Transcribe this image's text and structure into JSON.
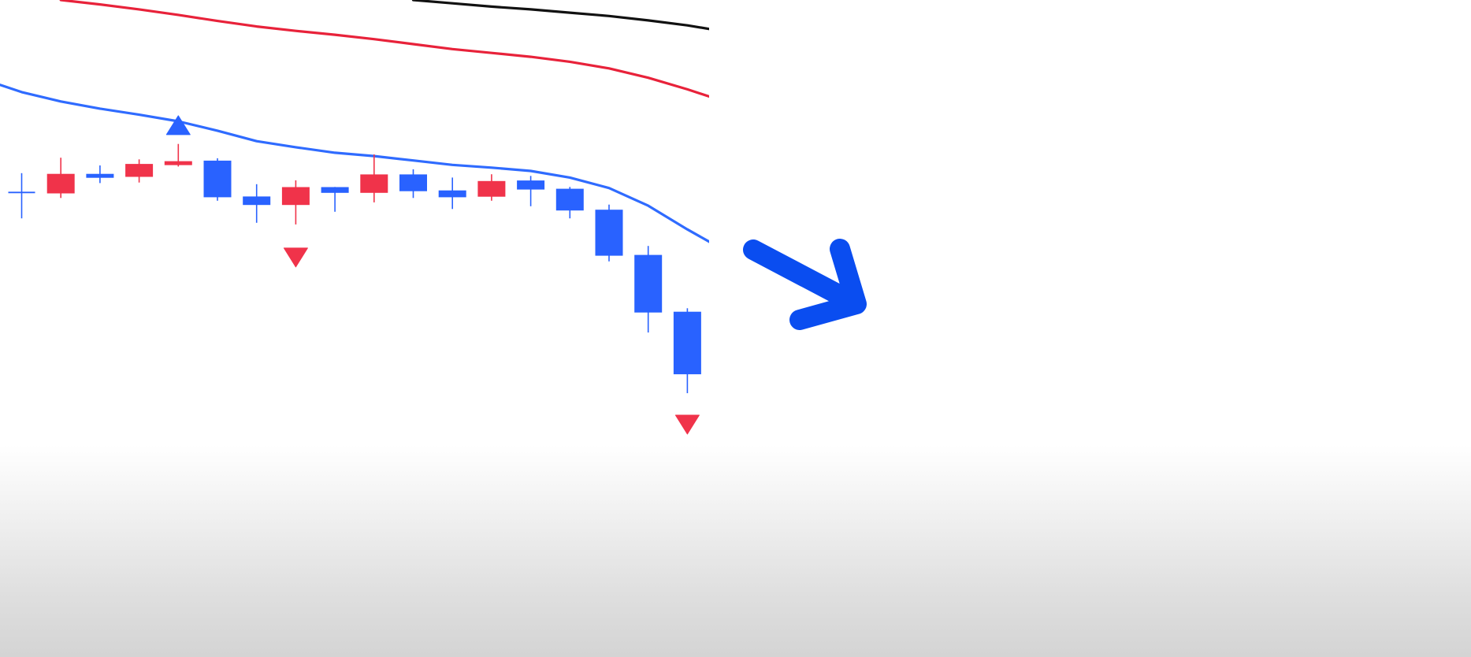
{
  "chart_data": {
    "type": "candlestick",
    "title": "",
    "xlabel": "",
    "ylabel": "",
    "ylim": [
      0,
      100
    ],
    "grid": false,
    "legend": "none",
    "colors": {
      "up": "#f0334a",
      "down": "#2962ff",
      "ma_slow": "#111111",
      "ma_mid": "#e8223a",
      "ma_fast": "#2f6bff",
      "arrow": "#0a4df0"
    },
    "candles": [
      {
        "x": 1,
        "open": 65.1,
        "close": 65.1,
        "high": 68.6,
        "low": 60.4,
        "dir": "down"
      },
      {
        "x": 2,
        "open": 65.0,
        "close": 68.4,
        "high": 71.4,
        "low": 64.1,
        "dir": "up"
      },
      {
        "x": 3,
        "open": 68.4,
        "close": 67.9,
        "high": 70.0,
        "low": 66.8,
        "dir": "down"
      },
      {
        "x": 4,
        "open": 68.0,
        "close": 70.2,
        "high": 71.1,
        "low": 66.9,
        "dir": "up"
      },
      {
        "x": 5,
        "open": 70.2,
        "close": 70.7,
        "high": 73.9,
        "low": 69.8,
        "dir": "up"
      },
      {
        "x": 6,
        "open": 70.8,
        "close": 64.3,
        "high": 71.3,
        "low": 63.6,
        "dir": "down"
      },
      {
        "x": 7,
        "open": 64.3,
        "close": 62.9,
        "high": 66.6,
        "low": 59.6,
        "dir": "down"
      },
      {
        "x": 8,
        "open": 62.9,
        "close": 66.0,
        "high": 67.3,
        "low": 59.3,
        "dir": "up"
      },
      {
        "x": 9,
        "open": 66.0,
        "close": 65.1,
        "high": 66.1,
        "low": 61.6,
        "dir": "down"
      },
      {
        "x": 10,
        "open": 65.1,
        "close": 68.3,
        "high": 72.0,
        "low": 63.3,
        "dir": "up"
      },
      {
        "x": 11,
        "open": 68.3,
        "close": 65.4,
        "high": 69.3,
        "low": 64.1,
        "dir": "down"
      },
      {
        "x": 12,
        "open": 65.4,
        "close": 64.3,
        "high": 67.8,
        "low": 62.1,
        "dir": "down"
      },
      {
        "x": 13,
        "open": 64.4,
        "close": 67.1,
        "high": 68.4,
        "low": 63.6,
        "dir": "up"
      },
      {
        "x": 14,
        "open": 67.2,
        "close": 65.7,
        "high": 68.1,
        "low": 62.6,
        "dir": "down"
      },
      {
        "x": 15,
        "open": 65.7,
        "close": 61.9,
        "high": 66.1,
        "low": 60.4,
        "dir": "down"
      },
      {
        "x": 16,
        "open": 61.9,
        "close": 53.7,
        "high": 62.9,
        "low": 52.6,
        "dir": "down"
      },
      {
        "x": 17,
        "open": 53.7,
        "close": 43.4,
        "high": 55.4,
        "low": 39.7,
        "dir": "down"
      },
      {
        "x": 18,
        "open": 43.4,
        "close": 32.2,
        "high": 44.1,
        "low": 28.7,
        "dir": "down"
      }
    ],
    "moving_averages": [
      {
        "key": "slow",
        "color_key": "ma_slow",
        "x": [
          11,
          12,
          13,
          14,
          15,
          16,
          17,
          18,
          18.6
        ],
        "values": [
          100.0,
          99.4,
          98.8,
          98.3,
          97.7,
          97.1,
          96.3,
          95.4,
          94.7
        ]
      },
      {
        "key": "mid",
        "color_key": "ma_mid",
        "x": [
          2,
          3,
          4,
          5,
          6,
          7,
          8,
          9,
          10,
          11,
          12,
          13,
          14,
          15,
          16,
          17,
          18,
          18.6
        ],
        "values": [
          100.0,
          99.2,
          98.3,
          97.3,
          96.2,
          95.2,
          94.4,
          93.7,
          92.9,
          92.0,
          91.1,
          90.4,
          89.7,
          88.8,
          87.6,
          85.9,
          83.8,
          82.4
        ]
      },
      {
        "key": "fast",
        "color_key": "ma_fast",
        "x": [
          0.45,
          1,
          2,
          3,
          4,
          5,
          6,
          7,
          8,
          9,
          10,
          11,
          12,
          13,
          14,
          15,
          16,
          17,
          18,
          18.6
        ],
        "values": [
          84.6,
          83.3,
          81.6,
          80.3,
          79.2,
          78.0,
          76.3,
          74.4,
          73.3,
          72.3,
          71.7,
          70.9,
          70.1,
          69.6,
          69.0,
          67.8,
          65.9,
          62.7,
          58.4,
          56.0
        ]
      }
    ],
    "signals": [
      {
        "x": 5,
        "y": 77.3,
        "direction": "up",
        "color_key": "down"
      },
      {
        "x": 8,
        "y": 53.3,
        "direction": "down",
        "color_key": "up"
      },
      {
        "x": 18,
        "y": 23.0,
        "direction": "down",
        "color_key": "up"
      }
    ],
    "annotation": {
      "type": "arrow",
      "direction": "down-right",
      "color_key": "arrow"
    }
  }
}
